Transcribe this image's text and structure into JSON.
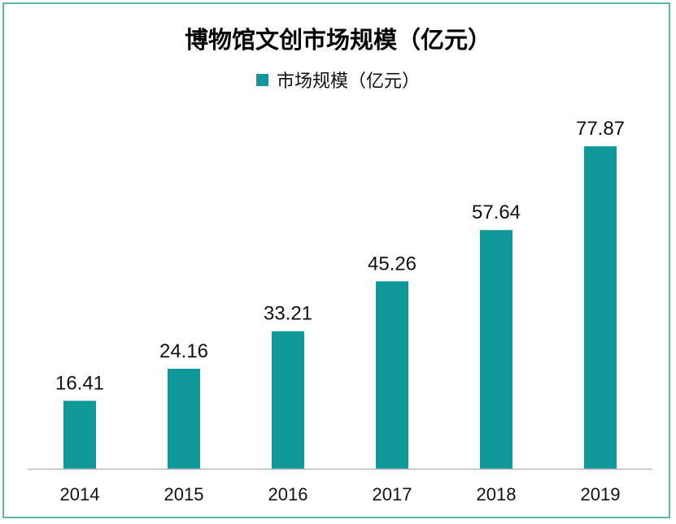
{
  "chart_data": {
    "type": "bar",
    "title": "博物馆文创市场规模（亿元）",
    "categories": [
      "2014",
      "2015",
      "2016",
      "2017",
      "2018",
      "2019"
    ],
    "series": [
      {
        "name": "市场规模（亿元）",
        "values": [
          16.41,
          24.16,
          33.21,
          45.26,
          57.64,
          77.87
        ],
        "color": "#0f979a"
      }
    ],
    "ylim": [
      0,
      87.7
    ],
    "grid": false,
    "legend": "top-center",
    "data_labels": true
  },
  "colors": {
    "bar": "#0f979a",
    "frame": "#5fb7b0",
    "axis": "#b8b8b8"
  }
}
